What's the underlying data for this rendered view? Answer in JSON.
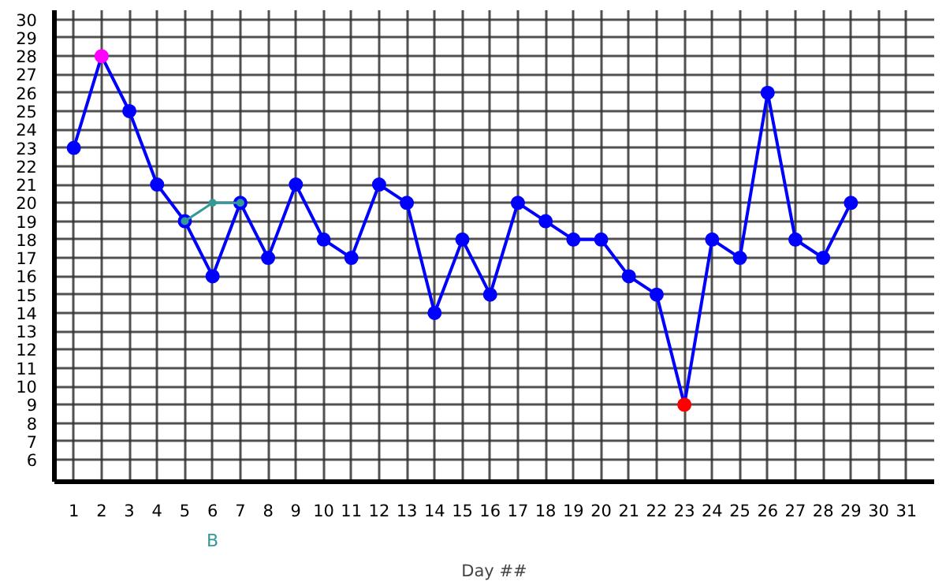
{
  "chart_data": {
    "type": "line",
    "xlabel": "Day ##",
    "xlim": [
      0.3,
      32
    ],
    "ylim": [
      4.8,
      30.5
    ],
    "xticks": [
      1,
      2,
      3,
      4,
      5,
      6,
      7,
      8,
      9,
      10,
      11,
      12,
      13,
      14,
      15,
      16,
      17,
      18,
      19,
      20,
      21,
      22,
      23,
      24,
      25,
      26,
      27,
      28,
      29,
      30,
      31
    ],
    "yticks": [
      6,
      7,
      8,
      9,
      10,
      11,
      12,
      13,
      14,
      15,
      16,
      17,
      18,
      19,
      20,
      21,
      22,
      23,
      24,
      25,
      26,
      27,
      28,
      29,
      30
    ],
    "grid": true,
    "marker": "circle",
    "line_style": "solid",
    "series": [
      {
        "color": "#0000ff",
        "x": [
          1,
          2,
          3,
          4,
          5,
          6,
          7,
          8,
          9,
          10,
          11,
          12,
          13,
          14,
          15,
          16,
          17,
          18,
          19,
          20,
          21,
          22,
          23,
          24,
          25,
          26,
          27,
          28,
          29
        ],
        "values": [
          23,
          28,
          25,
          21,
          19,
          16,
          20,
          17,
          21,
          18,
          17,
          21,
          20,
          14,
          18,
          15,
          20,
          19,
          18,
          18,
          16,
          15,
          9,
          18,
          17,
          26,
          18,
          17,
          20
        ],
        "colors": [
          "#0000ff",
          "#ff00ff",
          "#0000ff",
          "#0000ff",
          "#0000ff",
          "#0000ff",
          "#0000ff",
          "#0000ff",
          "#0000ff",
          "#0000ff",
          "#0000ff",
          "#0000ff",
          "#0000ff",
          "#0000ff",
          "#0000ff",
          "#0000ff",
          "#0000ff",
          "#0000ff",
          "#0000ff",
          "#0000ff",
          "#0000ff",
          "#0000ff",
          "#ff0000",
          "#0000ff",
          "#0000ff",
          "#0000ff",
          "#0000ff",
          "#0000ff",
          "#0000ff"
        ]
      },
      {
        "color": "#339999",
        "x": [
          5,
          6,
          7
        ],
        "values": [
          19,
          20,
          20
        ]
      }
    ],
    "annotations": [
      "B"
    ]
  }
}
